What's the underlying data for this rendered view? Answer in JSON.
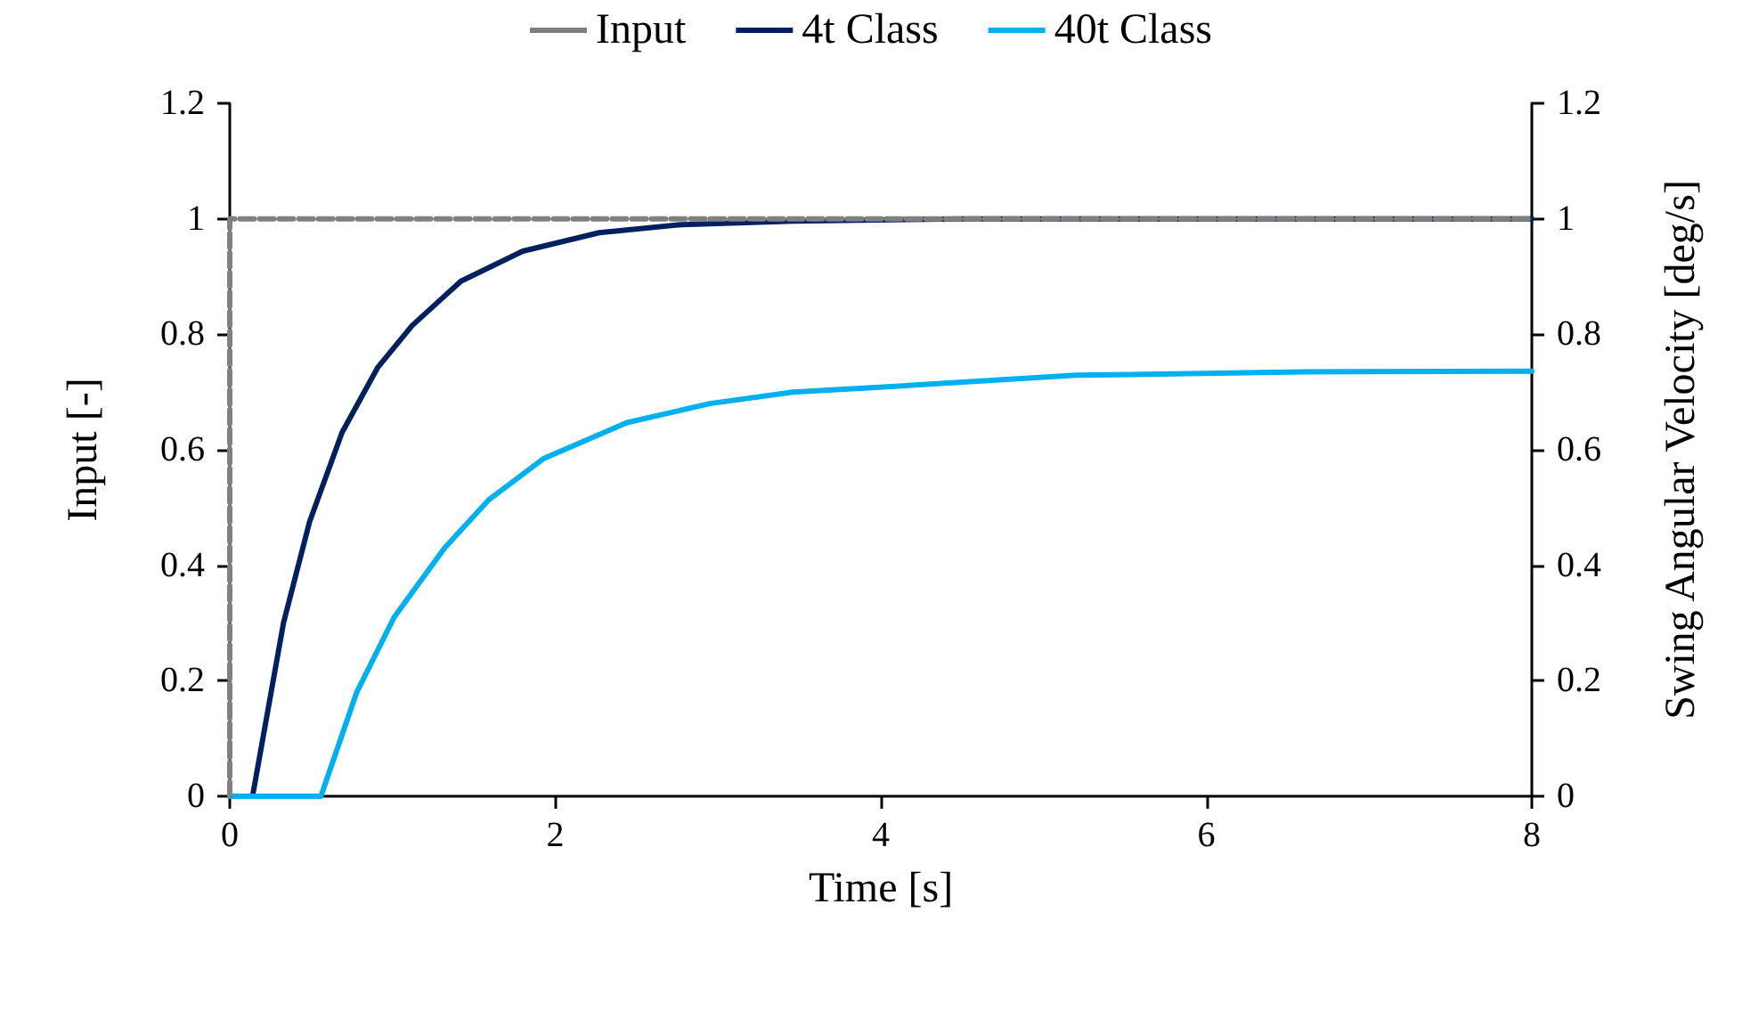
{
  "chart_data": {
    "type": "line",
    "xlabel": "Time [s]",
    "ylabel": "Input [-]",
    "y2label": "Swing Angular Velocity [deg/s]",
    "xlim": [
      0,
      8
    ],
    "xticks": [
      0,
      2,
      4,
      6,
      8
    ],
    "ylim": [
      0,
      1.2
    ],
    "yticks": [
      0,
      0.2,
      0.4,
      0.6,
      0.8,
      1,
      1.2
    ],
    "y2lim": [
      0,
      1.2
    ],
    "y2ticks": [
      0,
      0.2,
      0.4,
      0.6,
      0.8,
      1,
      1.2
    ],
    "grid": false,
    "legend": "top",
    "marker": "none",
    "series": [
      {
        "name": "Input",
        "color": "#808080",
        "line_style": "dashed",
        "x": [
          0,
          0,
          8
        ],
        "values": [
          0,
          1,
          1
        ]
      },
      {
        "name": "4t Class",
        "color": "#002060",
        "axis": "y2",
        "line_style": "solid",
        "x": [
          0,
          0.14,
          0.33,
          0.49,
          0.69,
          0.91,
          1.12,
          1.42,
          1.8,
          2.27,
          2.78,
          3.46,
          4.5,
          8
        ],
        "values": [
          0,
          0,
          0.3,
          0.475,
          0.63,
          0.743,
          0.815,
          0.892,
          0.944,
          0.976,
          0.99,
          0.996,
          1,
          1
        ]
      },
      {
        "name": "40t Class",
        "color": "#00b0f0",
        "axis": "y2",
        "line_style": "solid",
        "x": [
          0,
          0.56,
          0.78,
          1.01,
          1.32,
          1.59,
          1.93,
          2.44,
          2.95,
          3.46,
          3.97,
          5.2,
          6.6,
          8
        ],
        "values": [
          0,
          0,
          0.18,
          0.31,
          0.43,
          0.513,
          0.585,
          0.647,
          0.68,
          0.7,
          0.708,
          0.729,
          0.735,
          0.736
        ]
      }
    ]
  }
}
